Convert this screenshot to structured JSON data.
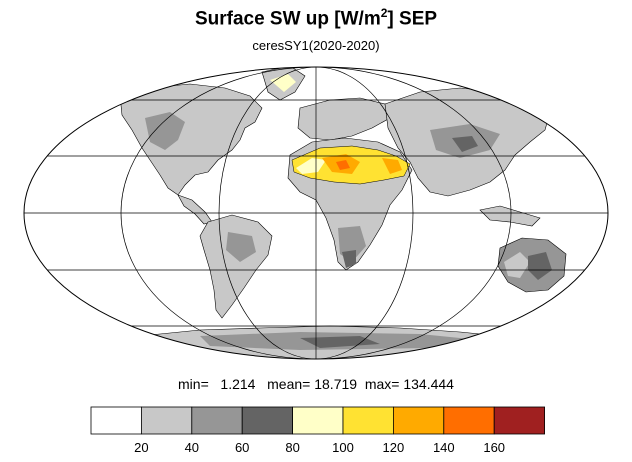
{
  "title": {
    "main": "Surface SW up [W/m",
    "sup": "2",
    "after": "]  SEP"
  },
  "subtitle": "ceresSY1(2020-2020)",
  "stats": {
    "min_label": "min=",
    "min_value": "1.214",
    "mean_label": "mean=",
    "mean_value": "18.719",
    "max_label": "max=",
    "max_value": "134.444"
  },
  "colorbar": {
    "levels": [
      "20",
      "40",
      "60",
      "80",
      "100",
      "120",
      "140",
      "160"
    ],
    "colors": [
      "#ffffff",
      "#c8c8c8",
      "#969696",
      "#646464",
      "#ffffc8",
      "#ffe232",
      "#ffaa00",
      "#ff6e00",
      "#a02020"
    ]
  },
  "map": {
    "projection": "Mollweide",
    "colors": {
      "land_low": "#c8c8c8",
      "land_mid": "#969696",
      "land_high": "#646464",
      "desert_low": "#ffffc8",
      "desert_mid": "#ffe232",
      "desert_high": "#ffaa00",
      "desert_peak": "#ff6e00"
    }
  }
}
